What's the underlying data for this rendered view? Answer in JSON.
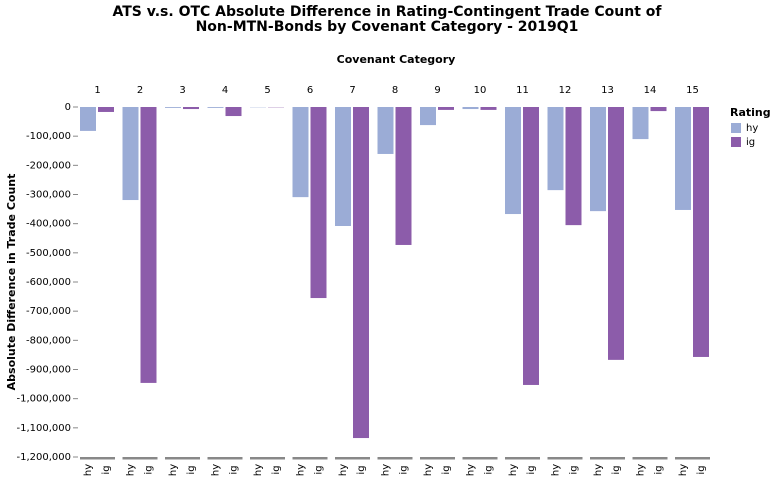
{
  "chart_data": {
    "type": "bar",
    "title": [
      "ATS v.s. OTC Absolute Difference in Rating-Contingent Trade Count of",
      "Non-MTN-Bonds by Covenant Category - 2019Q1"
    ],
    "column_title": "Covenant Category",
    "y_label": "Absolute Difference in Trade Count",
    "legend_title": "Rating",
    "categories": [
      "1",
      "2",
      "3",
      "4",
      "5",
      "6",
      "7",
      "8",
      "9",
      "10",
      "11",
      "12",
      "13",
      "14",
      "15"
    ],
    "series": [
      {
        "name": "hy",
        "color": "#9bacd6",
        "values": [
          -82000,
          -319000,
          -3000,
          -3000,
          -1000,
          -309000,
          -408000,
          -161000,
          -62000,
          -7000,
          -367000,
          -285000,
          -357000,
          -110000,
          -353000
        ]
      },
      {
        "name": "ig",
        "color": "#8c5caa",
        "values": [
          -17000,
          -946000,
          -7000,
          -31000,
          -1000,
          -655000,
          -1135000,
          -473000,
          -10000,
          -10000,
          -953000,
          -405000,
          -867000,
          -14000,
          -857000
        ]
      }
    ],
    "ylim": [
      -1200000,
      0
    ],
    "yticks": [
      0,
      {
        "value": -100000,
        "label": "-100,000"
      },
      {
        "value": -200000,
        "label": "-200,000"
      },
      {
        "value": -300000,
        "label": "-300,000"
      },
      {
        "value": -400000,
        "label": "-400,000"
      },
      {
        "value": -500000,
        "label": "-500,000"
      },
      {
        "value": -600000,
        "label": "-600,000"
      },
      {
        "value": -700000,
        "label": "-700,000"
      },
      {
        "value": -800000,
        "label": "-800,000"
      },
      {
        "value": -900000,
        "label": "-900,000"
      },
      {
        "value": -1000000,
        "label": "-1,000,000"
      },
      {
        "value": -1100000,
        "label": "-1,100,000"
      },
      {
        "value": -1200000,
        "label": "-1,200,000"
      }
    ],
    "grid": false
  }
}
